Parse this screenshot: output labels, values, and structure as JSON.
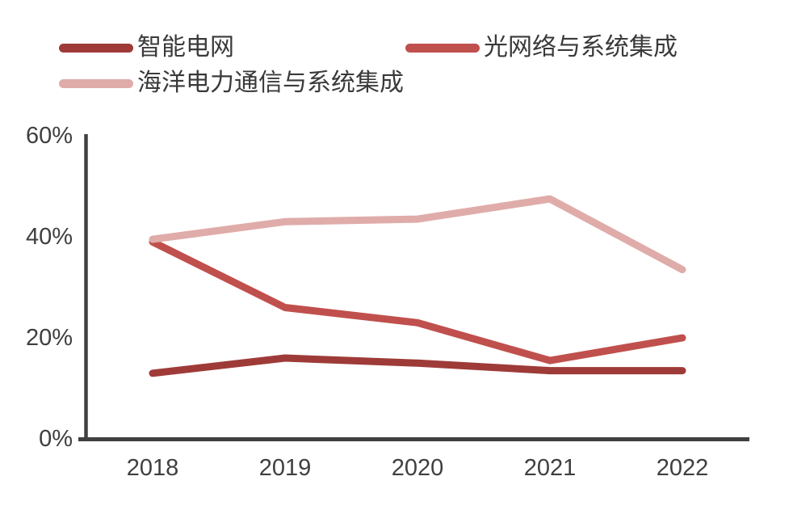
{
  "chart_data": {
    "type": "line",
    "x_labels": [
      "2018",
      "2019",
      "2020",
      "2021",
      "2022"
    ],
    "series": [
      {
        "name": "智能电网",
        "color": "#9e3b38",
        "values": [
          13.0,
          16.0,
          15.0,
          13.5,
          13.5
        ]
      },
      {
        "name": "光网络与系统集成",
        "color": "#c0504d",
        "values": [
          39.0,
          26.0,
          23.0,
          15.5,
          20.0
        ]
      },
      {
        "name": "海洋电力通信与系统集成",
        "color": "#dfaca9",
        "values": [
          39.5,
          43.0,
          43.5,
          47.5,
          33.5
        ]
      }
    ],
    "title": "",
    "xlabel": "",
    "ylabel": "",
    "ylim": [
      0,
      60
    ],
    "yticks": [
      0,
      20,
      40,
      60
    ],
    "ytick_labels": [
      "0%",
      "20%",
      "40%",
      "60%"
    ],
    "grid": false,
    "legend_position": "top-left",
    "axis_color": "#404040",
    "text_color": "#3f3f3f",
    "background_color": "#ffffff"
  }
}
